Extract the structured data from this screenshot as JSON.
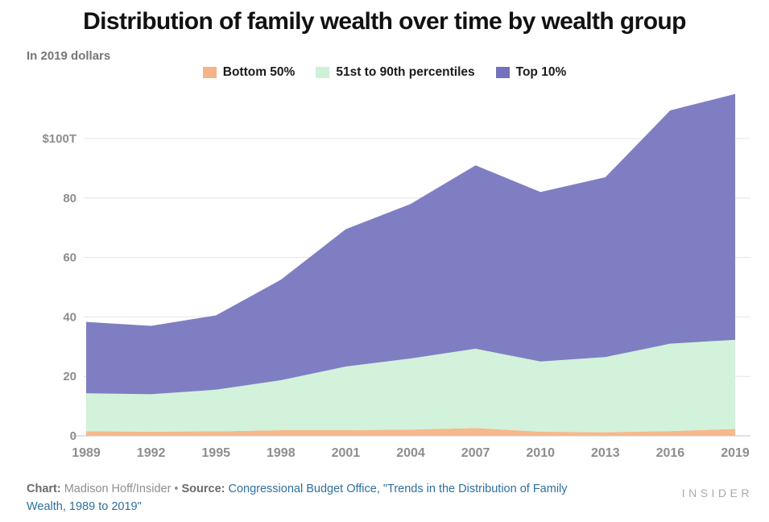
{
  "header": {
    "title": "Distribution of family wealth over time by wealth group",
    "subtitle": "In 2019 dollars"
  },
  "chart_data": {
    "type": "area",
    "stacked": true,
    "title": "Distribution of family wealth over time by wealth group",
    "subtitle": "In 2019 dollars",
    "unit": "trillions of 2019 dollars",
    "x": [
      1989,
      1992,
      1995,
      1998,
      2001,
      2004,
      2007,
      2010,
      2013,
      2016,
      2019
    ],
    "x_tick_labels": [
      "1989",
      "1992",
      "1995",
      "1998",
      "2001",
      "2004",
      "2007",
      "2010",
      "2013",
      "2016",
      "2019"
    ],
    "y_ticks": {
      "values": [
        0,
        20,
        40,
        60,
        80,
        100
      ],
      "labels": [
        "0",
        "20",
        "40",
        "60",
        "80",
        "$100T"
      ]
    },
    "ylim": [
      0,
      116
    ],
    "grid": "horizontal",
    "grid_color": "#e4e4e4",
    "zero_line_color": "#c6c6c6",
    "axis_label_color": "#8d8d8d",
    "series": [
      {
        "name": "Bottom 50%",
        "color": "#F6B98C",
        "values": [
          1.5,
          1.4,
          1.5,
          1.9,
          1.9,
          2.1,
          2.6,
          1.4,
          1.2,
          1.6,
          2.3
        ]
      },
      {
        "name": "51st to 90th percentiles",
        "color": "#D2F2DB",
        "values": [
          12.8,
          12.6,
          14.0,
          16.8,
          21.4,
          23.9,
          26.7,
          23.6,
          25.3,
          29.4,
          30.0
        ]
      },
      {
        "name": "Top 10%",
        "color": "#807EC2",
        "values": [
          24.0,
          23.0,
          25.0,
          33.8,
          46.2,
          52.0,
          61.7,
          57.0,
          60.5,
          78.5,
          82.7
        ]
      }
    ],
    "stacked_totals": [
      38.3,
      37.0,
      40.5,
      52.5,
      69.5,
      78.0,
      91.0,
      82.0,
      87.0,
      109.5,
      115.0
    ]
  },
  "legend_swatch_colors": {
    "bottom50": "#F5B488",
    "mid": "#CEF0D8",
    "top10": "#7472BD"
  },
  "footer": {
    "chart_label": "Chart:",
    "chart_credit": "Madison Hoff/Insider",
    "separator": "•",
    "source_label": "Source:",
    "source_line1": "Congressional Budget Office, \"Trends in the Distribution of Family",
    "source_line2": "Wealth, 1989 to 2019\"",
    "brand": "INSIDER",
    "link_color": "#2e6f9e"
  }
}
